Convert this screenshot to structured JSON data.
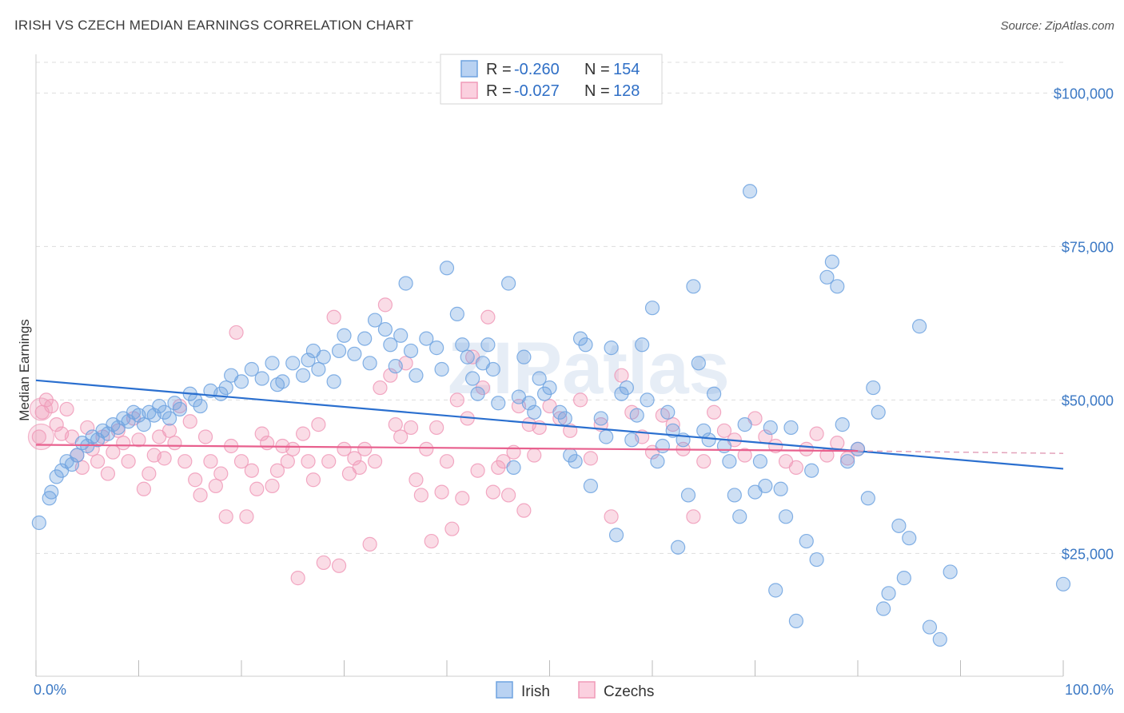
{
  "title": "IRISH VS CZECH MEDIAN EARNINGS CORRELATION CHART",
  "source": "Source: ZipAtlas.com",
  "watermark": "ZIPatlas",
  "colors": {
    "irish": "#6fa3e0",
    "irish_line": "#2a6fcf",
    "czech": "#f09ab8",
    "czech_line": "#e8608e",
    "grid": "#dddddd",
    "tick_label": "#3b78c4"
  },
  "chart_data": {
    "type": "scatter",
    "xlabel": "",
    "ylabel": "Median Earnings",
    "xlim": [
      0,
      100
    ],
    "ylim": [
      5000,
      105000
    ],
    "x_tick_labels": [
      "0.0%",
      "100.0%"
    ],
    "y_ticks": [
      25000,
      50000,
      75000,
      100000
    ],
    "y_tick_labels": [
      "$25,000",
      "$50,000",
      "$75,000",
      "$100,000"
    ],
    "grid": true,
    "legend": [
      {
        "r_label": "R = ",
        "r": "-0.260",
        "n_label": "N = ",
        "n": "154"
      },
      {
        "r_label": "R = ",
        "r": "-0.027",
        "n_label": "N = ",
        "n": "128"
      }
    ],
    "series": [
      {
        "name": "Irish",
        "trend": {
          "x0": 0,
          "y0": 53200,
          "x1": 100,
          "y1": 38800
        },
        "points": [
          [
            0.3,
            30000
          ],
          [
            1.3,
            34000
          ],
          [
            1.5,
            35000
          ],
          [
            2,
            37500
          ],
          [
            2.5,
            38500
          ],
          [
            3,
            40000
          ],
          [
            3.5,
            39500
          ],
          [
            4,
            41000
          ],
          [
            4.5,
            43000
          ],
          [
            5,
            42500
          ],
          [
            5.5,
            44000
          ],
          [
            6,
            43500
          ],
          [
            6.5,
            45000
          ],
          [
            7,
            44500
          ],
          [
            7.5,
            46000
          ],
          [
            8,
            45500
          ],
          [
            8.5,
            47000
          ],
          [
            9,
            46500
          ],
          [
            9.5,
            48000
          ],
          [
            10,
            47500
          ],
          [
            10.5,
            46000
          ],
          [
            11,
            48000
          ],
          [
            11.5,
            47500
          ],
          [
            12,
            49000
          ],
          [
            12.5,
            48000
          ],
          [
            13,
            47000
          ],
          [
            13.5,
            49500
          ],
          [
            14,
            48500
          ],
          [
            15,
            51000
          ],
          [
            15.5,
            50000
          ],
          [
            16,
            49000
          ],
          [
            17,
            51500
          ],
          [
            18,
            51000
          ],
          [
            18.5,
            52000
          ],
          [
            19,
            54000
          ],
          [
            20,
            53000
          ],
          [
            21,
            55000
          ],
          [
            22,
            53500
          ],
          [
            23,
            56000
          ],
          [
            23.5,
            52500
          ],
          [
            24,
            53000
          ],
          [
            25,
            56000
          ],
          [
            26,
            54000
          ],
          [
            26.5,
            56500
          ],
          [
            27,
            58000
          ],
          [
            27.5,
            55000
          ],
          [
            28,
            57000
          ],
          [
            29,
            53000
          ],
          [
            29.5,
            58000
          ],
          [
            30,
            60500
          ],
          [
            31,
            57500
          ],
          [
            32,
            60000
          ],
          [
            32.5,
            56000
          ],
          [
            33,
            63000
          ],
          [
            34,
            61500
          ],
          [
            34.5,
            59000
          ],
          [
            35,
            55500
          ],
          [
            35.5,
            60500
          ],
          [
            36,
            69000
          ],
          [
            36.5,
            58000
          ],
          [
            37,
            54000
          ],
          [
            38,
            60000
          ],
          [
            39,
            58500
          ],
          [
            39.5,
            55000
          ],
          [
            40,
            71500
          ],
          [
            41,
            64000
          ],
          [
            41.5,
            59000
          ],
          [
            42,
            57000
          ],
          [
            42.5,
            53500
          ],
          [
            43,
            51000
          ],
          [
            43.5,
            56000
          ],
          [
            44,
            59000
          ],
          [
            44.5,
            55000
          ],
          [
            45,
            49500
          ],
          [
            46,
            69000
          ],
          [
            46.5,
            39000
          ],
          [
            47,
            50500
          ],
          [
            47.5,
            57000
          ],
          [
            48,
            49500
          ],
          [
            48.5,
            48000
          ],
          [
            49,
            53500
          ],
          [
            49.5,
            51000
          ],
          [
            50,
            52000
          ],
          [
            51,
            48000
          ],
          [
            51.5,
            47000
          ],
          [
            52,
            41000
          ],
          [
            52.5,
            40000
          ],
          [
            53,
            60000
          ],
          [
            53.5,
            59000
          ],
          [
            54,
            36000
          ],
          [
            55,
            47000
          ],
          [
            55.5,
            44000
          ],
          [
            56,
            58500
          ],
          [
            56.5,
            28000
          ],
          [
            57,
            51000
          ],
          [
            57.5,
            52000
          ],
          [
            58,
            43500
          ],
          [
            58.5,
            47500
          ],
          [
            59,
            59000
          ],
          [
            59.5,
            50000
          ],
          [
            60,
            65000
          ],
          [
            60.5,
            40000
          ],
          [
            61,
            42500
          ],
          [
            61.5,
            48000
          ],
          [
            62,
            45000
          ],
          [
            62.5,
            26000
          ],
          [
            63,
            43500
          ],
          [
            63.5,
            34500
          ],
          [
            64,
            68500
          ],
          [
            64.5,
            56000
          ],
          [
            65,
            45000
          ],
          [
            65.5,
            43500
          ],
          [
            66,
            51000
          ],
          [
            67,
            42500
          ],
          [
            67.5,
            40000
          ],
          [
            68,
            34500
          ],
          [
            68.5,
            31000
          ],
          [
            69,
            46000
          ],
          [
            69.5,
            84000
          ],
          [
            70,
            35000
          ],
          [
            70.5,
            40000
          ],
          [
            71,
            36000
          ],
          [
            71.5,
            45500
          ],
          [
            72,
            19000
          ],
          [
            72.5,
            35500
          ],
          [
            73,
            31000
          ],
          [
            73.5,
            45500
          ],
          [
            74,
            14000
          ],
          [
            75,
            27000
          ],
          [
            75.5,
            38500
          ],
          [
            76,
            24000
          ],
          [
            77,
            70000
          ],
          [
            77.5,
            72500
          ],
          [
            78,
            68500
          ],
          [
            78.5,
            46000
          ],
          [
            79,
            40000
          ],
          [
            80,
            42000
          ],
          [
            81,
            34000
          ],
          [
            81.5,
            52000
          ],
          [
            82,
            48000
          ],
          [
            82.5,
            16000
          ],
          [
            83,
            18500
          ],
          [
            84,
            29500
          ],
          [
            84.5,
            21000
          ],
          [
            85,
            27500
          ],
          [
            86,
            62000
          ],
          [
            87,
            13000
          ],
          [
            88,
            11000
          ],
          [
            89,
            22000
          ],
          [
            100,
            20000
          ]
        ]
      },
      {
        "name": "Czechs",
        "trend": {
          "x0": 0,
          "y0": 42700,
          "x1": 80,
          "y1": 41700,
          "dash_x1": 100,
          "dash_y1": 41300
        },
        "points": [
          [
            0.3,
            44000
          ],
          [
            0.6,
            48000
          ],
          [
            1,
            50000
          ],
          [
            1.5,
            49000
          ],
          [
            2,
            46000
          ],
          [
            2.5,
            44500
          ],
          [
            3,
            48500
          ],
          [
            3.5,
            44000
          ],
          [
            4,
            41000
          ],
          [
            4.5,
            39000
          ],
          [
            5,
            45500
          ],
          [
            5.5,
            42000
          ],
          [
            6,
            40000
          ],
          [
            6.5,
            44000
          ],
          [
            7,
            38000
          ],
          [
            7.5,
            41500
          ],
          [
            8,
            45000
          ],
          [
            8.5,
            43000
          ],
          [
            9,
            40000
          ],
          [
            9.5,
            47000
          ],
          [
            10,
            43500
          ],
          [
            10.5,
            35500
          ],
          [
            11,
            38000
          ],
          [
            11.5,
            41000
          ],
          [
            12,
            44000
          ],
          [
            12.5,
            40500
          ],
          [
            13,
            45000
          ],
          [
            13.5,
            43000
          ],
          [
            14,
            49000
          ],
          [
            14.5,
            40000
          ],
          [
            15,
            46500
          ],
          [
            15.5,
            37000
          ],
          [
            16,
            34500
          ],
          [
            16.5,
            44000
          ],
          [
            17,
            40000
          ],
          [
            17.5,
            36000
          ],
          [
            18,
            38000
          ],
          [
            18.5,
            31000
          ],
          [
            19,
            42500
          ],
          [
            19.5,
            61000
          ],
          [
            20,
            40000
          ],
          [
            20.5,
            31000
          ],
          [
            21,
            38500
          ],
          [
            21.5,
            35500
          ],
          [
            22,
            44500
          ],
          [
            22.5,
            43000
          ],
          [
            23,
            36000
          ],
          [
            23.5,
            38500
          ],
          [
            24,
            42500
          ],
          [
            24.5,
            40000
          ],
          [
            25,
            42000
          ],
          [
            25.5,
            21000
          ],
          [
            26,
            44500
          ],
          [
            26.5,
            40000
          ],
          [
            27,
            37000
          ],
          [
            27.5,
            46000
          ],
          [
            28,
            23500
          ],
          [
            28.5,
            40000
          ],
          [
            29,
            63500
          ],
          [
            29.5,
            23000
          ],
          [
            30,
            42000
          ],
          [
            30.5,
            38000
          ],
          [
            31,
            40500
          ],
          [
            31.5,
            39000
          ],
          [
            32,
            42000
          ],
          [
            32.5,
            26500
          ],
          [
            33,
            40000
          ],
          [
            33.5,
            52000
          ],
          [
            34,
            65500
          ],
          [
            34.5,
            54000
          ],
          [
            35,
            46000
          ],
          [
            35.5,
            44000
          ],
          [
            36,
            56000
          ],
          [
            36.5,
            45500
          ],
          [
            37,
            37000
          ],
          [
            37.5,
            34500
          ],
          [
            38,
            42000
          ],
          [
            38.5,
            27000
          ],
          [
            39,
            45500
          ],
          [
            39.5,
            35000
          ],
          [
            40,
            40000
          ],
          [
            40.5,
            29000
          ],
          [
            41,
            50000
          ],
          [
            41.5,
            34000
          ],
          [
            42,
            47000
          ],
          [
            42.5,
            57000
          ],
          [
            43,
            38500
          ],
          [
            43.5,
            52000
          ],
          [
            44,
            63500
          ],
          [
            44.5,
            35000
          ],
          [
            45,
            39000
          ],
          [
            45.5,
            40000
          ],
          [
            46,
            34500
          ],
          [
            46.5,
            41500
          ],
          [
            47,
            49000
          ],
          [
            47.5,
            32000
          ],
          [
            48,
            46000
          ],
          [
            48.5,
            41000
          ],
          [
            49,
            45500
          ],
          [
            50,
            49000
          ],
          [
            51,
            47000
          ],
          [
            52,
            45000
          ],
          [
            53,
            50000
          ],
          [
            54,
            40500
          ],
          [
            55,
            46000
          ],
          [
            56,
            31000
          ],
          [
            57,
            54000
          ],
          [
            58,
            48000
          ],
          [
            59,
            44000
          ],
          [
            60,
            41500
          ],
          [
            61,
            47500
          ],
          [
            62,
            46000
          ],
          [
            63,
            42000
          ],
          [
            64,
            31000
          ],
          [
            65,
            40000
          ],
          [
            66,
            48000
          ],
          [
            67,
            45000
          ],
          [
            68,
            43500
          ],
          [
            69,
            41000
          ],
          [
            70,
            47000
          ],
          [
            71,
            44000
          ],
          [
            72,
            42500
          ],
          [
            73,
            40000
          ],
          [
            74,
            39000
          ],
          [
            75,
            42000
          ],
          [
            76,
            44500
          ],
          [
            77,
            41000
          ],
          [
            78,
            43000
          ],
          [
            79,
            40500
          ],
          [
            80,
            42000
          ]
        ]
      }
    ]
  },
  "bottom_legend": [
    "Irish",
    "Czechs"
  ]
}
